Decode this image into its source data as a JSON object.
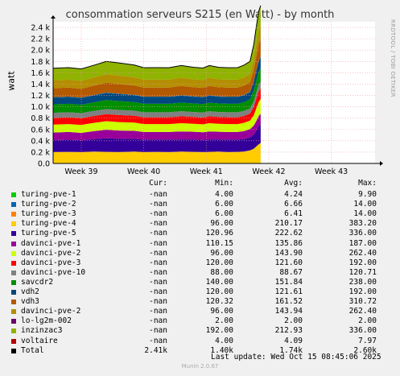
{
  "title": "consommation serveurs S215 (en Watt) - by month",
  "side_label": "RRDTOOL / TOBI OETIKER",
  "ylabel": "watt",
  "legend": {
    "headers": {
      "cur": "Cur:",
      "min": "Min:",
      "avg": "Avg:",
      "max": "Max:"
    },
    "rows": [
      {
        "name": "turing-pve-1",
        "color": "#00cc00",
        "cur": "-nan",
        "min": "4.00",
        "avg": "4.24",
        "max": "9.90"
      },
      {
        "name": "turing-pve-2",
        "color": "#0066b3",
        "cur": "-nan",
        "min": "6.00",
        "avg": "6.66",
        "max": "14.00"
      },
      {
        "name": "turing-pve-3",
        "color": "#ff8000",
        "cur": "-nan",
        "min": "6.00",
        "avg": "6.41",
        "max": "14.00"
      },
      {
        "name": "turing-pve-4",
        "color": "#ffcc00",
        "cur": "-nan",
        "min": "96.00",
        "avg": "210.17",
        "max": "383.20"
      },
      {
        "name": "turing-pve-5",
        "color": "#330099",
        "cur": "-nan",
        "min": "120.96",
        "avg": "222.62",
        "max": "336.00"
      },
      {
        "name": "davinci-pve-1",
        "color": "#990099",
        "cur": "-nan",
        "min": "110.15",
        "avg": "135.86",
        "max": "187.00"
      },
      {
        "name": "davinci-pve-2",
        "color": "#ccff00",
        "cur": "-nan",
        "min": "96.00",
        "avg": "143.90",
        "max": "262.40"
      },
      {
        "name": "davinci-pve-3",
        "color": "#ff0000",
        "cur": "-nan",
        "min": "120.00",
        "avg": "121.60",
        "max": "192.00"
      },
      {
        "name": "davinci-pve-10",
        "color": "#808080",
        "cur": "-nan",
        "min": "88.00",
        "avg": "88.67",
        "max": "120.71"
      },
      {
        "name": "savcdr2",
        "color": "#008f00",
        "cur": "-nan",
        "min": "140.00",
        "avg": "151.84",
        "max": "238.00"
      },
      {
        "name": "vdh2",
        "color": "#00487d",
        "cur": "-nan",
        "min": "120.00",
        "avg": "121.61",
        "max": "192.00"
      },
      {
        "name": "vdh3",
        "color": "#b35a00",
        "cur": "-nan",
        "min": "120.32",
        "avg": "161.52",
        "max": "310.72"
      },
      {
        "name": "davinci-pve-2",
        "color": "#b38f00",
        "cur": "-nan",
        "min": "96.00",
        "avg": "143.94",
        "max": "262.40"
      },
      {
        "name": "lo-lg2m-002",
        "color": "#6b006b",
        "cur": "-nan",
        "min": "2.00",
        "avg": "2.00",
        "max": "2.00"
      },
      {
        "name": "inzinzac3",
        "color": "#8fb300",
        "cur": "-nan",
        "min": "192.00",
        "avg": "212.93",
        "max": "336.00"
      },
      {
        "name": "voltaire",
        "color": "#b30000",
        "cur": "-nan",
        "min": "4.00",
        "avg": "4.09",
        "max": "7.97"
      },
      {
        "name": "Total",
        "color": "#000000",
        "cur": "2.41k",
        "min": "1.40k",
        "avg": "1.74k",
        "max": "2.60k"
      }
    ]
  },
  "last_update": "Last update: Wed Oct 15 08:45:06 2025",
  "munin": "Munin 2.0.67",
  "chart_data": {
    "type": "area",
    "title": "consommation serveurs S215 (en Watt) - by month",
    "ylabel": "watt",
    "xlabel": "",
    "ylim": [
      0,
      2500
    ],
    "y_ticks": [
      "0.0",
      "0.2 k",
      "0.4 k",
      "0.6 k",
      "0.8 k",
      "1.0 k",
      "1.2 k",
      "1.4 k",
      "1.6 k",
      "1.8 k",
      "2.0 k",
      "2.2 k",
      "2.4 k"
    ],
    "y_tick_values": [
      0,
      200,
      400,
      600,
      800,
      1000,
      1200,
      1400,
      1600,
      1800,
      2000,
      2200,
      2400
    ],
    "x_ticks": [
      "Week 39",
      "Week 40",
      "Week 41",
      "Week 42",
      "Week 43"
    ],
    "x_range_weeks": [
      38.55,
      43.7
    ],
    "x_tick_weeks": [
      39,
      40,
      41,
      42,
      43
    ],
    "data_end_week": 41.87,
    "grid": true,
    "stack_order": [
      "turing-pve-4",
      "turing-pve-5",
      "davinci-pve-1",
      "davinci-pve-2",
      "davinci-pve-3",
      "davinci-pve-10",
      "savcdr2",
      "vdh2",
      "turing-pve-2",
      "vdh3",
      "davinci-pve-2",
      "inzinzac3"
    ],
    "time_weeks": [
      38.55,
      38.8,
      39.0,
      39.2,
      39.4,
      39.6,
      39.85,
      40.0,
      40.2,
      40.4,
      40.6,
      40.8,
      40.95,
      41.05,
      41.2,
      41.35,
      41.5,
      41.6,
      41.7,
      41.76,
      41.8,
      41.84,
      41.87
    ],
    "series": [
      {
        "name": "turing-pve-4",
        "color": "#ffcc00",
        "values": [
          200,
          205,
          200,
          210,
          205,
          200,
          210,
          200,
          205,
          200,
          210,
          205,
          200,
          205,
          210,
          200,
          205,
          210,
          230,
          260,
          300,
          340,
          360
        ]
      },
      {
        "name": "turing-pve-5",
        "color": "#330099",
        "values": [
          210,
          215,
          210,
          220,
          240,
          235,
          225,
          220,
          215,
          220,
          215,
          220,
          215,
          220,
          215,
          220,
          215,
          220,
          230,
          250,
          280,
          320,
          330
        ]
      },
      {
        "name": "davinci-pve-1",
        "color": "#990099",
        "values": [
          135,
          135,
          130,
          140,
          150,
          145,
          140,
          135,
          135,
          135,
          140,
          135,
          135,
          140,
          135,
          135,
          135,
          140,
          145,
          160,
          170,
          180,
          185
        ]
      },
      {
        "name": "davinci-pve-2",
        "color": "#ccff00",
        "values": [
          140,
          140,
          140,
          145,
          150,
          150,
          145,
          140,
          140,
          140,
          145,
          140,
          140,
          145,
          140,
          140,
          140,
          145,
          150,
          180,
          220,
          250,
          260
        ]
      },
      {
        "name": "davinci-pve-3",
        "color": "#ff0000",
        "values": [
          120,
          120,
          120,
          122,
          125,
          124,
          122,
          120,
          120,
          120,
          122,
          120,
          120,
          122,
          120,
          120,
          120,
          122,
          125,
          150,
          170,
          185,
          190
        ]
      },
      {
        "name": "davinci-pve-10",
        "color": "#808080",
        "values": [
          88,
          88,
          88,
          89,
          90,
          90,
          89,
          88,
          88,
          88,
          89,
          88,
          88,
          89,
          88,
          88,
          88,
          89,
          90,
          100,
          110,
          118,
          120
        ]
      },
      {
        "name": "savcdr2",
        "color": "#008f00",
        "values": [
          150,
          150,
          148,
          152,
          158,
          156,
          152,
          150,
          150,
          150,
          152,
          150,
          150,
          152,
          150,
          150,
          150,
          152,
          160,
          190,
          210,
          230,
          236
        ]
      },
      {
        "name": "vdh2",
        "color": "#00487d",
        "values": [
          120,
          120,
          120,
          122,
          125,
          124,
          122,
          120,
          120,
          120,
          122,
          120,
          120,
          122,
          120,
          120,
          120,
          122,
          125,
          150,
          170,
          185,
          190
        ]
      },
      {
        "name": "turing-pve-2",
        "color": "#0066b3",
        "values": [
          6,
          6,
          6,
          7,
          7,
          7,
          6,
          6,
          6,
          6,
          7,
          6,
          6,
          7,
          6,
          6,
          6,
          7,
          7,
          8,
          10,
          12,
          14
        ]
      },
      {
        "name": "vdh3",
        "color": "#b35a00",
        "values": [
          160,
          160,
          155,
          165,
          175,
          170,
          165,
          160,
          160,
          160,
          165,
          160,
          160,
          165,
          160,
          160,
          160,
          165,
          170,
          210,
          250,
          290,
          305
        ]
      },
      {
        "name": "davinci-pve-2",
        "color": "#b38f00",
        "values": [
          140,
          140,
          140,
          145,
          150,
          150,
          145,
          140,
          140,
          140,
          145,
          140,
          140,
          145,
          140,
          140,
          140,
          145,
          150,
          180,
          220,
          250,
          260
        ]
      },
      {
        "name": "inzinzac3",
        "color": "#8fb300",
        "values": [
          210,
          212,
          210,
          215,
          225,
          222,
          215,
          210,
          212,
          210,
          215,
          212,
          210,
          215,
          212,
          210,
          212,
          215,
          220,
          260,
          300,
          325,
          335
        ]
      }
    ]
  }
}
